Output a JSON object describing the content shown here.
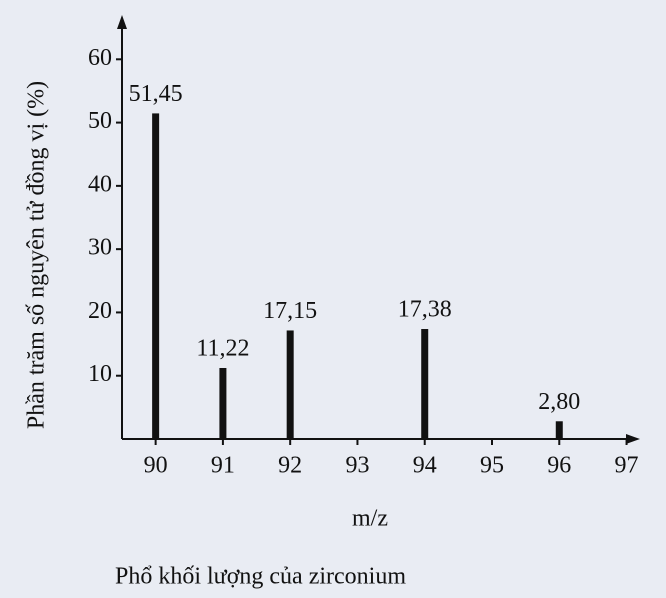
{
  "chart_data": {
    "type": "bar",
    "x": [
      90,
      91,
      92,
      94,
      96
    ],
    "values": [
      51.45,
      11.22,
      17.15,
      17.38,
      2.8
    ],
    "value_labels": [
      "51,45",
      "11,22",
      "17,15",
      "17,38",
      "2,80"
    ],
    "color": "#111111",
    "xlim": [
      89.5,
      97.2
    ],
    "xticks": [
      90,
      91,
      92,
      93,
      94,
      95,
      96,
      97
    ],
    "ylim": [
      0,
      67
    ],
    "yticks": [
      10,
      20,
      30,
      40,
      50,
      60
    ],
    "xlabel": "m/z",
    "ylabel": "Phần trăm số nguyên tử đồng vị (%)",
    "caption": "Phổ khối lượng của zirconium"
  }
}
